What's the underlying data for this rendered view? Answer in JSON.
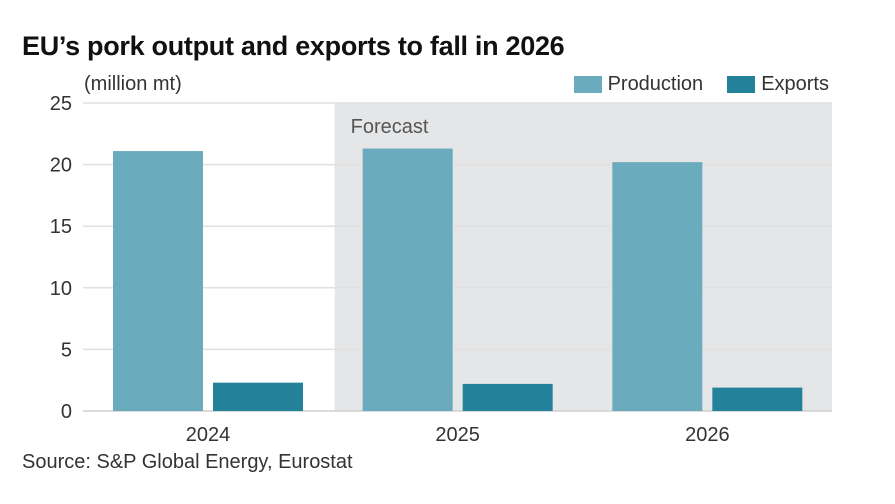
{
  "chart_data": {
    "type": "bar",
    "title": "EU’s pork output and exports to fall in 2026",
    "ylabel": "(million mt)",
    "xlabel": "",
    "categories": [
      "2024",
      "2025",
      "2026"
    ],
    "series": [
      {
        "name": "Production",
        "color": "#6aabbd",
        "values": [
          21.1,
          21.3,
          20.2
        ]
      },
      {
        "name": "Exports",
        "color": "#23829a",
        "values": [
          2.3,
          2.2,
          1.9
        ]
      }
    ],
    "ylim": [
      0,
      25
    ],
    "yticks": [
      0,
      5,
      10,
      15,
      20,
      25
    ],
    "grid": true,
    "legend": "top-right",
    "annotations": [
      {
        "text": "Forecast",
        "applies_to": [
          "2025",
          "2026"
        ],
        "shade_color": "#e5e6e8"
      }
    ],
    "source": "Source: S&P Global Energy, Eurostat"
  }
}
